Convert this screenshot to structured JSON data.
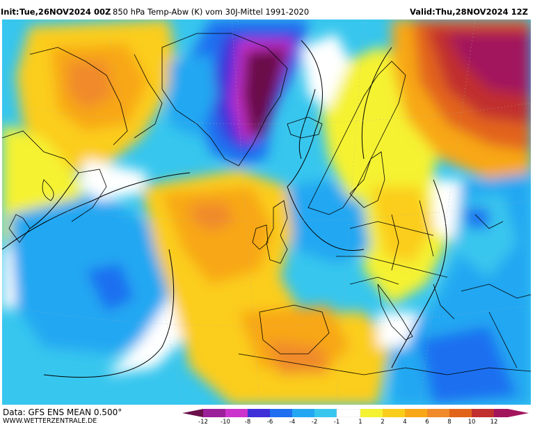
{
  "header": {
    "init_label": "Init:",
    "init_value": "Tue,26NOV2024 00Z",
    "title": "850 hPa Temp-Abw (K) vom 30J-Mittel 1991-2020",
    "valid_label": "Valid:",
    "valid_value": "Thu,28NOV2024 12Z"
  },
  "footer": {
    "data_source": "Data: GFS ENS MEAN 0.500°",
    "website": "WWW.WETTERZENTRALE.DE"
  },
  "legend": {
    "tick_labels": [
      "-12",
      "-10",
      "-8",
      "-6",
      "-4",
      "-2",
      "-1",
      "1",
      "2",
      "4",
      "6",
      "8",
      "10",
      "12"
    ],
    "colors": {
      "below_minus12": "#6a0f4a",
      "minus12_to_minus10": "#9c1f9a",
      "minus10_to_minus8": "#cc33cc",
      "minus8_to_minus6": "#3f2fd8",
      "minus6_to_minus4": "#1f6ff0",
      "minus4_to_minus2": "#23a7f2",
      "minus2_to_minus1": "#37c6ee",
      "minus1_to_1": "#ffffff",
      "1_to_2": "#f5f232",
      "2_to_4": "#fbcd1b",
      "4_to_6": "#f8a718",
      "6_to_8": "#f08a2a",
      "8_to_10": "#e2641a",
      "10_to_12": "#c12f2f",
      "above_12": "#a2155d"
    }
  }
}
